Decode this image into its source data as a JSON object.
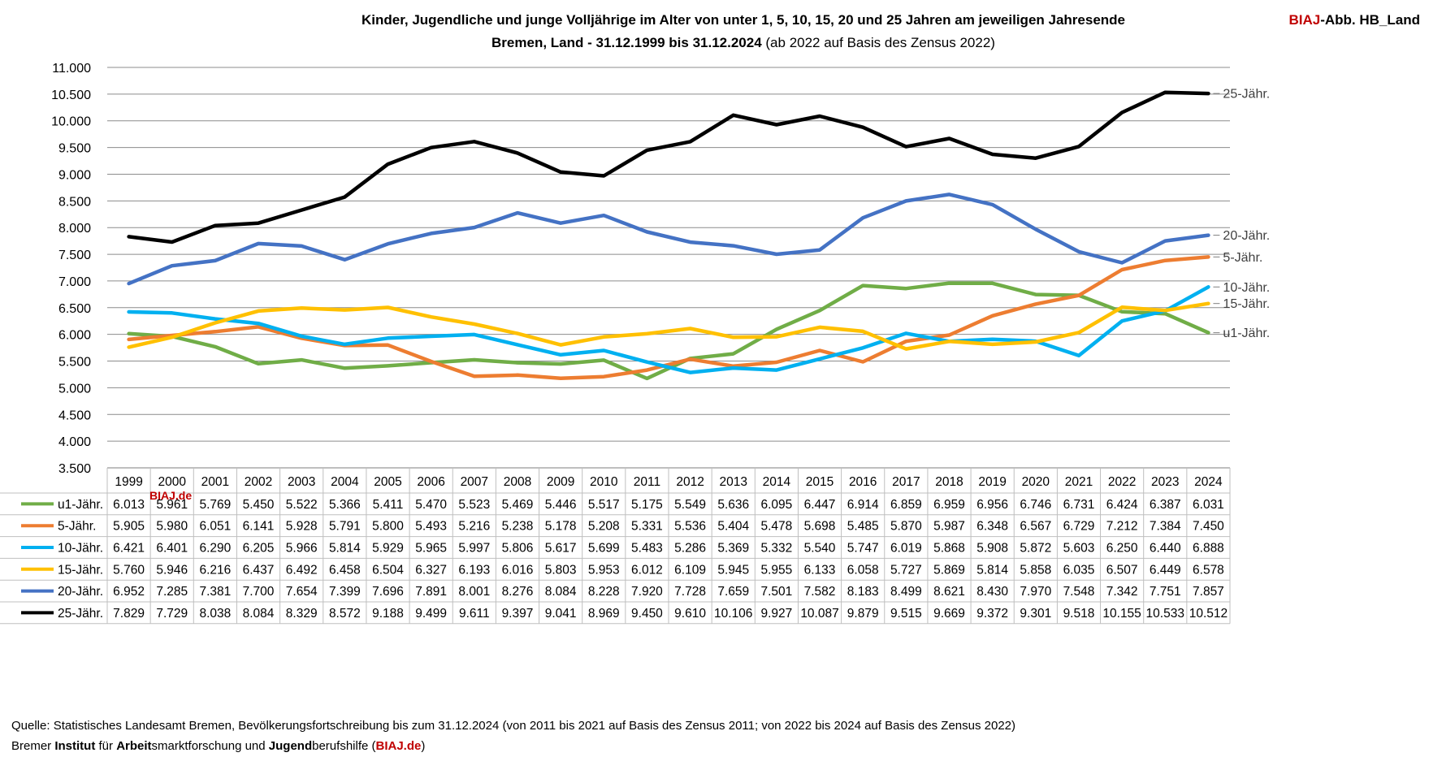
{
  "header": {
    "title_line1": "Kinder, Jugendliche und junge Volljährige im Alter von unter 1, 5, 10, 15, 20 und 25 Jahren am jeweiligen Jahresende",
    "title_line2_bold": "Bremen, Land - 31.12.1999 bis 31.12.2024",
    "title_line2_normal": " (ab 2022 auf Basis des Zensus 2022)",
    "tag_red": "BIAJ",
    "tag_black": "-Abb. HB_Land"
  },
  "watermark": "BIAJ.de",
  "footer": {
    "source": "Quelle: Statistisches Landesamt Bremen, Bevölkerungsfortschreibung bis zum 31.12.2024 (von 2011 bis 2021 auf Basis des Zensus 2011; von 2022 bis 2024 auf Basis des Zensus 2022)",
    "inst_1": "Bremer ",
    "inst_2": "Institut",
    "inst_3": " für ",
    "inst_4": "Arbeit",
    "inst_5": "smarktforschung und ",
    "inst_6": "Jugend",
    "inst_7": "berufshilfe (",
    "inst_8": "BIAJ.de",
    "inst_9": ")"
  },
  "chart_data": {
    "type": "line",
    "grid": true,
    "ylim": [
      3500,
      11000
    ],
    "ytick_step": 500,
    "yticks": [
      "3.500",
      "4.000",
      "4.500",
      "5.000",
      "5.500",
      "6.000",
      "6.500",
      "7.000",
      "7.500",
      "8.000",
      "8.500",
      "9.000",
      "9.500",
      "10.000",
      "10.500",
      "11.000"
    ],
    "x": [
      "1999",
      "2000",
      "2001",
      "2002",
      "2003",
      "2004",
      "2005",
      "2006",
      "2007",
      "2008",
      "2009",
      "2010",
      "2011",
      "2012",
      "2013",
      "2014",
      "2015",
      "2016",
      "2017",
      "2018",
      "2019",
      "2020",
      "2021",
      "2022",
      "2023",
      "2024"
    ],
    "data_table": true,
    "series": [
      {
        "name": "u1-Jähr.",
        "end_label": "u1-Jähr.",
        "color": "#70ad47",
        "values": [
          6013,
          5961,
          5769,
          5450,
          5522,
          5366,
          5411,
          5470,
          5523,
          5469,
          5446,
          5517,
          5175,
          5549,
          5636,
          6095,
          6447,
          6914,
          6859,
          6959,
          6956,
          6746,
          6731,
          6424,
          6387,
          6031
        ],
        "table": [
          "6.013",
          "5.961",
          "5.769",
          "5.450",
          "5.522",
          "5.366",
          "5.411",
          "5.470",
          "5.523",
          "5.469",
          "5.446",
          "5.517",
          "5.175",
          "5.549",
          "5.636",
          "6.095",
          "6.447",
          "6.914",
          "6.859",
          "6.959",
          "6.956",
          "6.746",
          "6.731",
          "6.424",
          "6.387",
          "6.031"
        ]
      },
      {
        "name": "5-Jähr.",
        "end_label": "5-Jähr.",
        "color": "#ed7d31",
        "values": [
          5905,
          5980,
          6051,
          6141,
          5928,
          5791,
          5800,
          5493,
          5216,
          5238,
          5178,
          5208,
          5331,
          5536,
          5404,
          5478,
          5698,
          5485,
          5870,
          5987,
          6348,
          6567,
          6729,
          7212,
          7384,
          7450
        ],
        "table": [
          "5.905",
          "5.980",
          "6.051",
          "6.141",
          "5.928",
          "5.791",
          "5.800",
          "5.493",
          "5.216",
          "5.238",
          "5.178",
          "5.208",
          "5.331",
          "5.536",
          "5.404",
          "5.478",
          "5.698",
          "5.485",
          "5.870",
          "5.987",
          "6.348",
          "6.567",
          "6.729",
          "7.212",
          "7.384",
          "7.450"
        ]
      },
      {
        "name": "10-Jähr.",
        "end_label": "10-Jähr.",
        "color": "#00b0f0",
        "values": [
          6421,
          6401,
          6290,
          6205,
          5966,
          5814,
          5929,
          5965,
          5997,
          5806,
          5617,
          5699,
          5483,
          5286,
          5369,
          5332,
          5540,
          5747,
          6019,
          5868,
          5908,
          5872,
          5603,
          6250,
          6440,
          6888
        ],
        "table": [
          "6.421",
          "6.401",
          "6.290",
          "6.205",
          "5.966",
          "5.814",
          "5.929",
          "5.965",
          "5.997",
          "5.806",
          "5.617",
          "5.699",
          "5.483",
          "5.286",
          "5.369",
          "5.332",
          "5.540",
          "5.747",
          "6.019",
          "5.868",
          "5.908",
          "5.872",
          "5.603",
          "6.250",
          "6.440",
          "6.888"
        ]
      },
      {
        "name": "15-Jähr.",
        "end_label": "15-Jähr.",
        "color": "#ffc000",
        "values": [
          5760,
          5946,
          6216,
          6437,
          6492,
          6458,
          6504,
          6327,
          6193,
          6016,
          5803,
          5953,
          6012,
          6109,
          5945,
          5955,
          6133,
          6058,
          5727,
          5869,
          5814,
          5858,
          6035,
          6507,
          6449,
          6578
        ],
        "table": [
          "5.760",
          "5.946",
          "6.216",
          "6.437",
          "6.492",
          "6.458",
          "6.504",
          "6.327",
          "6.193",
          "6.016",
          "5.803",
          "5.953",
          "6.012",
          "6.109",
          "5.945",
          "5.955",
          "6.133",
          "6.058",
          "5.727",
          "5.869",
          "5.814",
          "5.858",
          "6.035",
          "6.507",
          "6.449",
          "6.578"
        ]
      },
      {
        "name": "20-Jähr.",
        "end_label": "20-Jähr.",
        "color": "#4472c4",
        "values": [
          6952,
          7285,
          7381,
          7700,
          7654,
          7399,
          7696,
          7891,
          8001,
          8276,
          8084,
          8228,
          7920,
          7728,
          7659,
          7501,
          7582,
          8183,
          8499,
          8621,
          8430,
          7970,
          7548,
          7342,
          7751,
          7857
        ],
        "table": [
          "6.952",
          "7.285",
          "7.381",
          "7.700",
          "7.654",
          "7.399",
          "7.696",
          "7.891",
          "8.001",
          "8.276",
          "8.084",
          "8.228",
          "7.920",
          "7.728",
          "7.659",
          "7.501",
          "7.582",
          "8.183",
          "8.499",
          "8.621",
          "8.430",
          "7.970",
          "7.548",
          "7.342",
          "7.751",
          "7.857"
        ]
      },
      {
        "name": "25-Jähr.",
        "end_label": "25-Jähr.",
        "color": "#000000",
        "values": [
          7829,
          7729,
          8038,
          8084,
          8329,
          8572,
          9188,
          9499,
          9611,
          9397,
          9041,
          8969,
          9450,
          9610,
          10106,
          9927,
          10087,
          9879,
          9515,
          9669,
          9372,
          9301,
          9518,
          10155,
          10533,
          10512
        ],
        "table": [
          "7.829",
          "7.729",
          "8.038",
          "8.084",
          "8.329",
          "8.572",
          "9.188",
          "9.499",
          "9.611",
          "9.397",
          "9.041",
          "8.969",
          "9.450",
          "9.610",
          "10.106",
          "9.927",
          "10.087",
          "9.879",
          "9.515",
          "9.669",
          "9.372",
          "9.301",
          "9.518",
          "10.155",
          "10.533",
          "10.512"
        ]
      }
    ]
  }
}
